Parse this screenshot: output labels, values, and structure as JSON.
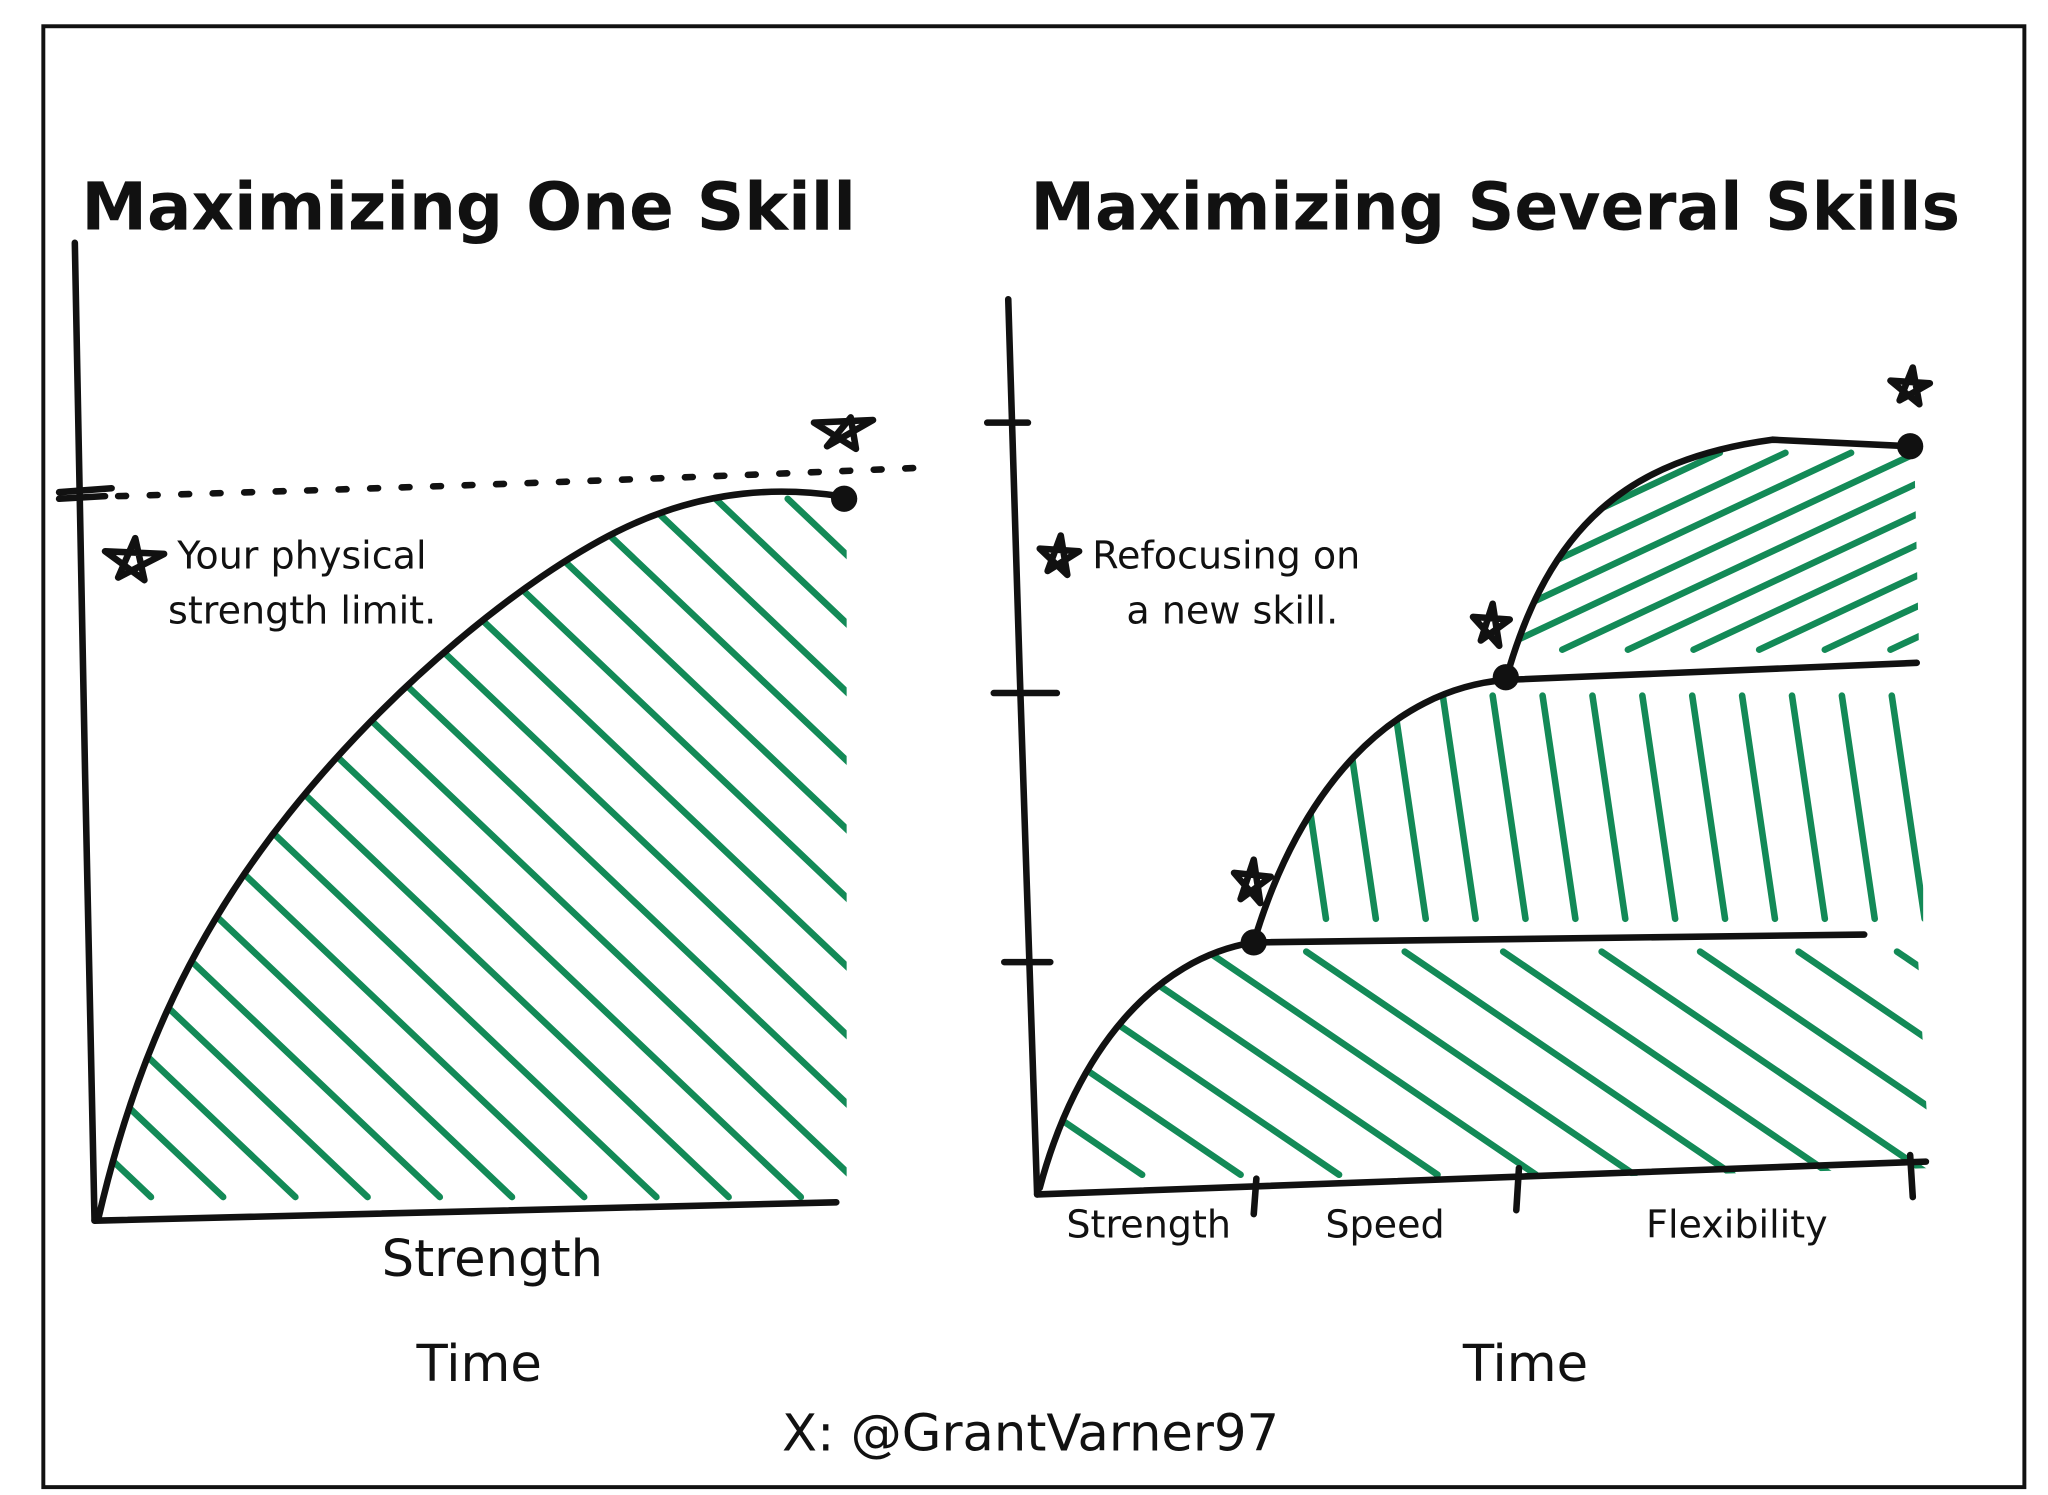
{
  "left_panel": {
    "title": "Maximizing One Skill",
    "annotation": [
      "Your physical",
      "strength limit."
    ],
    "x_label": "Strength",
    "axis_caption": "Time"
  },
  "right_panel": {
    "title": "Maximizing Several Skills",
    "annotation": [
      "Refocusing on",
      "a new skill."
    ],
    "segment_labels": [
      "Strength",
      "Speed",
      "Flexibility"
    ],
    "axis_caption": "Time"
  },
  "credit": "X: @GrantVarner97"
}
